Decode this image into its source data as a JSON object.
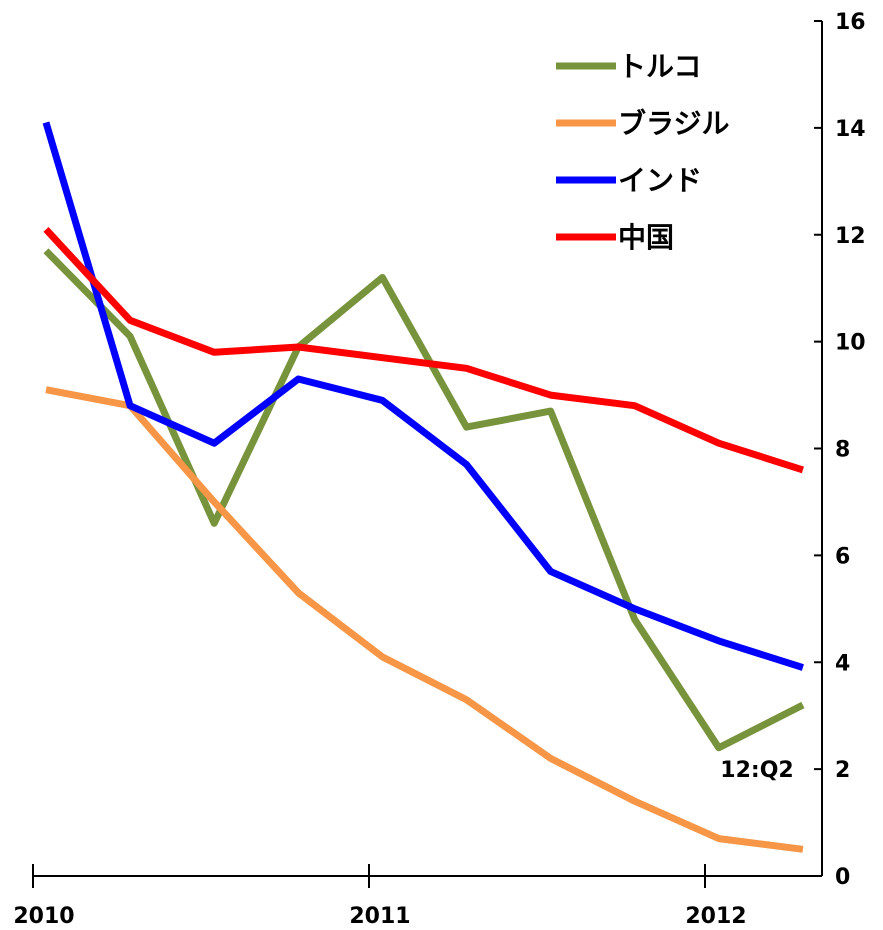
{
  "chart_data": {
    "type": "line",
    "x": [
      1,
      2,
      3,
      4,
      5,
      6,
      7,
      8,
      9,
      10
    ],
    "x_tick_labels": [
      "2010",
      "2011",
      "2012"
    ],
    "ylim": [
      0,
      16
    ],
    "y_ticks": [
      0,
      2,
      4,
      6,
      8,
      10,
      12,
      14,
      16
    ],
    "y_axis_side": "right",
    "grid": false,
    "legend_position": "top-right",
    "annotation": "12:Q2",
    "series": [
      {
        "name": "トルコ",
        "color": "#77933C",
        "values": [
          11.7,
          10.1,
          6.6,
          9.9,
          11.2,
          8.4,
          8.7,
          4.8,
          2.4,
          3.2
        ]
      },
      {
        "name": "ブラジル",
        "color": "#F79646",
        "values": [
          9.1,
          8.8,
          7.0,
          5.3,
          4.1,
          3.3,
          2.2,
          1.4,
          0.7,
          0.5
        ]
      },
      {
        "name": "インド",
        "color": "#0000FF",
        "values": [
          14.1,
          8.8,
          8.1,
          9.3,
          8.9,
          7.7,
          5.7,
          5.0,
          4.4,
          3.9
        ]
      },
      {
        "name": "中国",
        "color": "#FF0000",
        "values": [
          12.1,
          10.4,
          9.8,
          9.9,
          9.7,
          9.5,
          9.0,
          8.8,
          8.1,
          7.6
        ]
      }
    ]
  }
}
